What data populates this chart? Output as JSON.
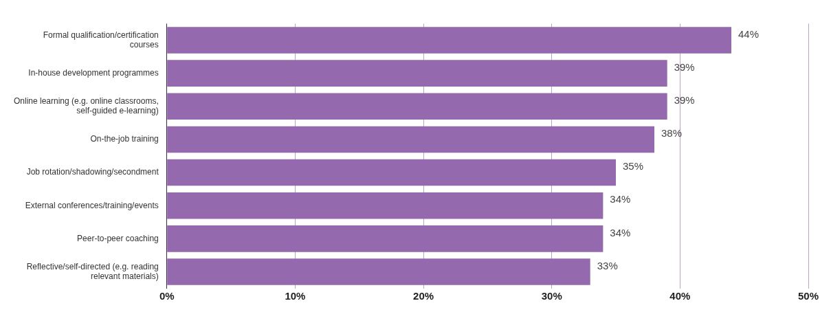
{
  "chart_data": {
    "type": "bar",
    "orientation": "horizontal",
    "categories": [
      "Formal qualification/certification courses",
      "In-house development programmes",
      "Online learning (e.g. online classrooms, self-guided e-learning)",
      "On-the-job training",
      "Job rotation/shadowing/secondment",
      "External conferences/training/events",
      "Peer-to-peer coaching",
      "Reflective/self-directed (e.g. reading relevant materials)"
    ],
    "values": [
      44,
      39,
      39,
      38,
      35,
      34,
      34,
      33
    ],
    "value_labels": [
      "44%",
      "39%",
      "39%",
      "38%",
      "35%",
      "34%",
      "34%",
      "33%"
    ],
    "color": "#9569ae",
    "xlim": [
      0,
      50
    ],
    "xticks": [
      {
        "value": 0,
        "label": "0%"
      },
      {
        "value": 10,
        "label": "10%"
      },
      {
        "value": 20,
        "label": "20%"
      },
      {
        "value": 30,
        "label": "30%"
      },
      {
        "value": 40,
        "label": "40%"
      },
      {
        "value": 50,
        "label": "50%"
      }
    ],
    "grid": "x",
    "legend": false
  }
}
